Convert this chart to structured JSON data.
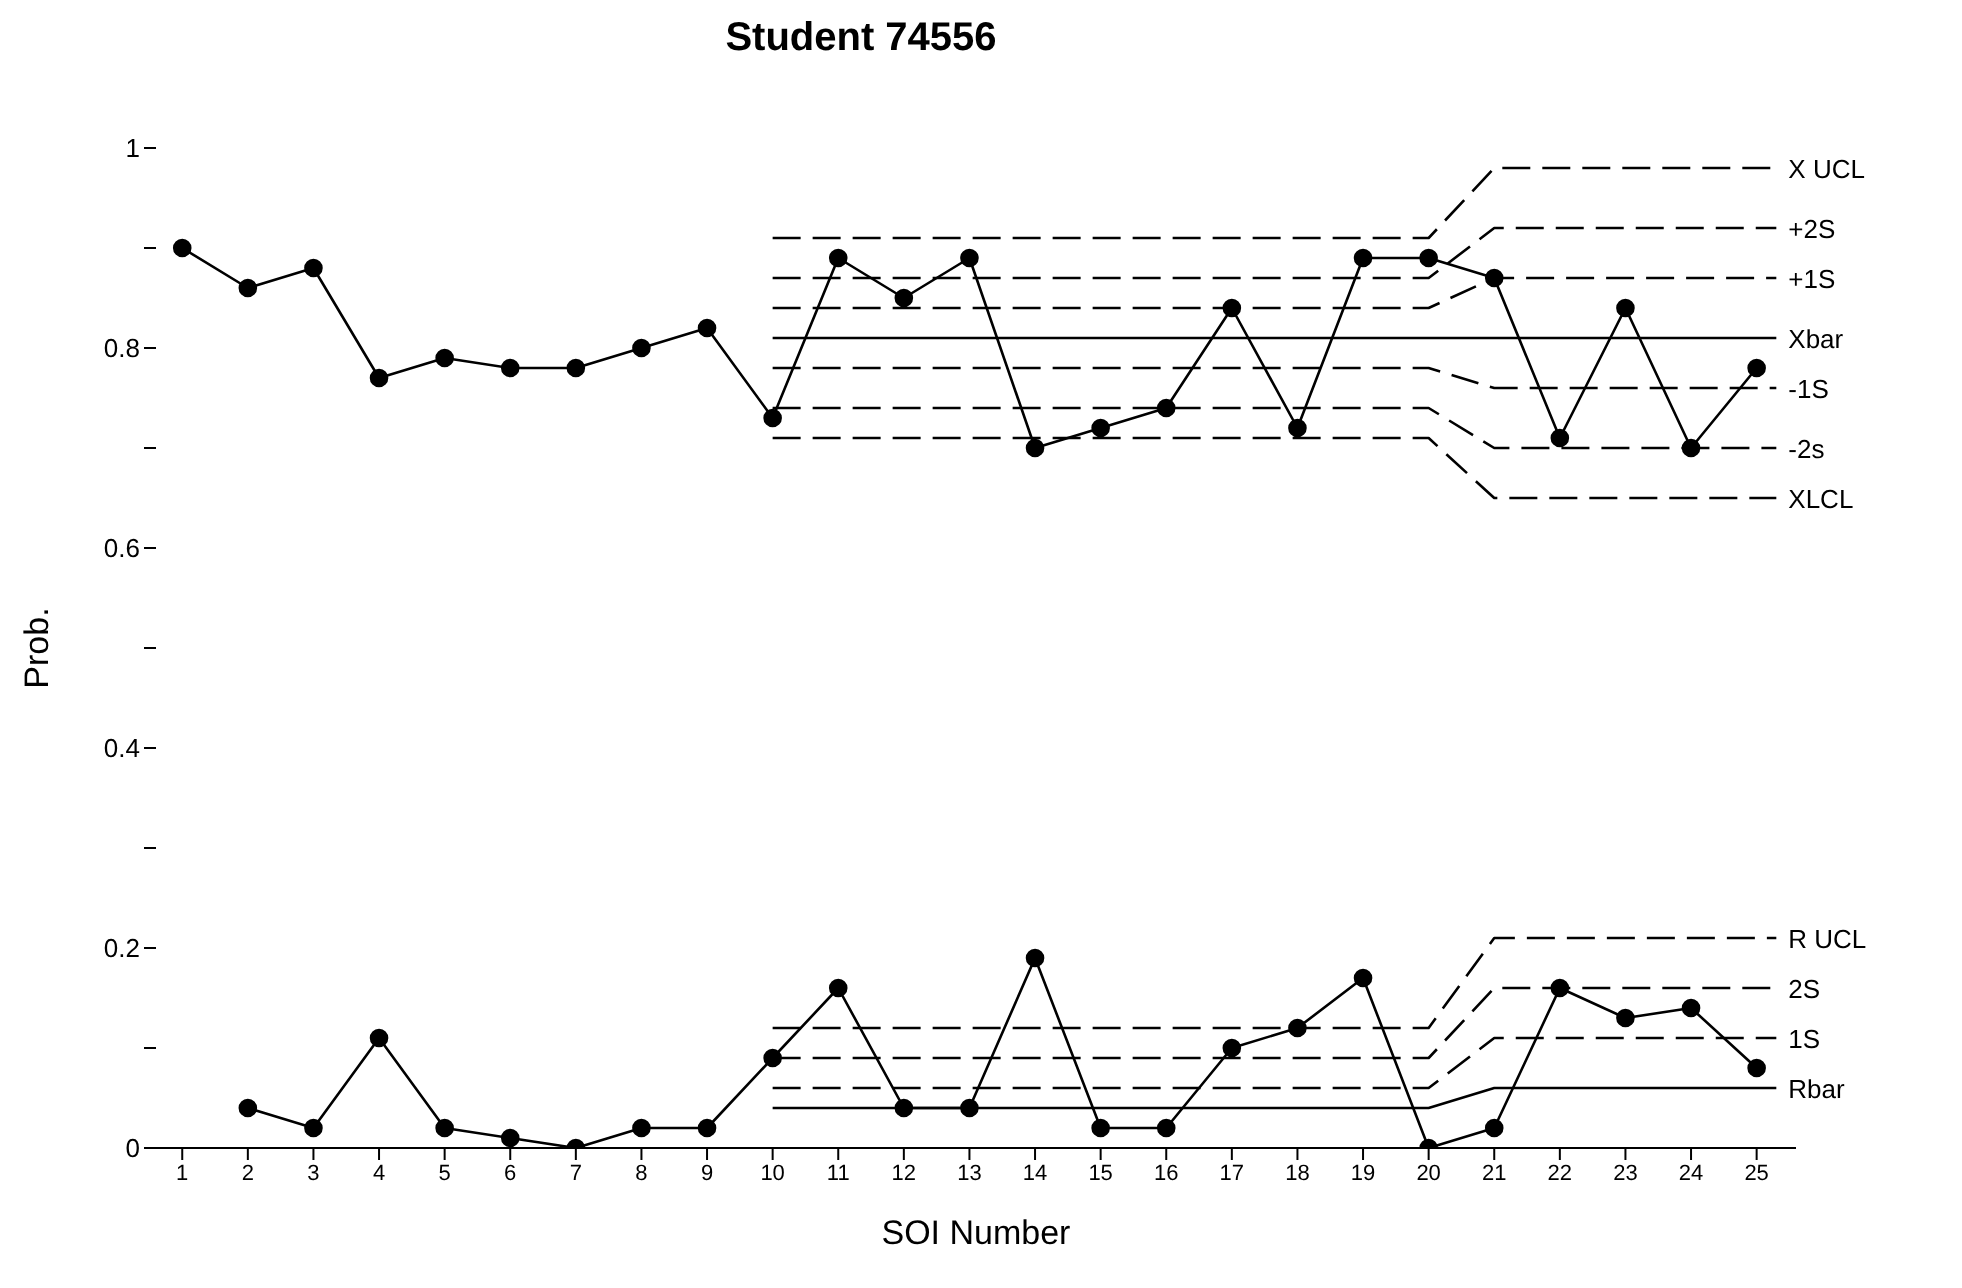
{
  "chart_data": {
    "type": "line",
    "title": "Student 74556",
    "xlabel": "SOI Number",
    "ylabel": "Prob.",
    "xlim": [
      0.6,
      25.6
    ],
    "xticks": [
      1,
      2,
      3,
      4,
      5,
      6,
      7,
      8,
      9,
      10,
      11,
      12,
      13,
      14,
      15,
      16,
      17,
      18,
      19,
      20,
      21,
      22,
      23,
      24,
      25
    ],
    "ylim": [
      0,
      1
    ],
    "yticks": [
      0,
      {
        "value": 0.1,
        "label": null
      },
      0.2,
      {
        "value": 0.3,
        "label": null
      },
      0.4,
      {
        "value": 0.5,
        "label": null
      },
      0.6,
      {
        "value": 0.7,
        "label": null
      },
      0.8,
      {
        "value": 0.9,
        "label": null
      },
      1
    ],
    "series": [
      {
        "color": "#000000",
        "marker": "circle",
        "line_style": "solid",
        "x": [
          1,
          2,
          3,
          4,
          5,
          6,
          7,
          8,
          9,
          10,
          11,
          12,
          13,
          14,
          15,
          16,
          17,
          18,
          19,
          20,
          21,
          22,
          23,
          24,
          25
        ],
        "values": [
          0.9,
          0.86,
          0.88,
          0.77,
          0.79,
          0.78,
          0.78,
          0.8,
          0.82,
          0.73,
          0.89,
          0.85,
          0.89,
          0.7,
          0.72,
          0.74,
          0.84,
          0.72,
          0.89,
          0.89,
          0.87,
          0.71,
          0.84,
          0.7,
          0.78
        ]
      },
      {
        "color": "#000000",
        "marker": "circle",
        "line_style": "solid",
        "x": [
          2,
          3,
          4,
          5,
          6,
          7,
          8,
          9,
          10,
          11,
          12,
          13,
          14,
          15,
          16,
          17,
          18,
          19,
          20,
          21,
          22,
          23,
          24,
          25
        ],
        "values": [
          0.04,
          0.02,
          0.11,
          0.02,
          0.01,
          0.0,
          0.02,
          0.02,
          0.09,
          0.16,
          0.04,
          0.04,
          0.19,
          0.02,
          0.02,
          0.1,
          0.12,
          0.17,
          0.0,
          0.02,
          0.16,
          0.13,
          0.14,
          0.08
        ]
      },
      {
        "name": "X UCL",
        "color": "#000000",
        "marker": "none",
        "line_style": "dashed",
        "x": [
          10,
          20,
          21,
          25.3
        ],
        "values": [
          0.91,
          0.91,
          0.98,
          0.98
        ]
      },
      {
        "name": "+2S",
        "color": "#000000",
        "marker": "none",
        "line_style": "dashed",
        "x": [
          10,
          20,
          21,
          25.3
        ],
        "values": [
          0.87,
          0.87,
          0.92,
          0.92
        ]
      },
      {
        "name": "+1S",
        "color": "#000000",
        "marker": "none",
        "line_style": "dashed",
        "x": [
          10,
          20,
          21,
          25.3
        ],
        "values": [
          0.84,
          0.84,
          0.87,
          0.87
        ]
      },
      {
        "name": "Xbar",
        "color": "#000000",
        "marker": "none",
        "line_style": "solid",
        "x": [
          10,
          20,
          21,
          25.3
        ],
        "values": [
          0.81,
          0.81,
          0.81,
          0.81
        ]
      },
      {
        "name": "-1S",
        "color": "#000000",
        "marker": "none",
        "line_style": "dashed",
        "x": [
          10,
          20,
          21,
          25.3
        ],
        "values": [
          0.78,
          0.78,
          0.76,
          0.76
        ]
      },
      {
        "name": "-2s",
        "color": "#000000",
        "marker": "none",
        "line_style": "dashed",
        "x": [
          10,
          20,
          21,
          25.3
        ],
        "values": [
          0.74,
          0.74,
          0.7,
          0.7
        ]
      },
      {
        "name": "XLCL",
        "color": "#000000",
        "marker": "none",
        "line_style": "dashed",
        "x": [
          10,
          20,
          21,
          25.3
        ],
        "values": [
          0.71,
          0.71,
          0.65,
          0.65
        ]
      },
      {
        "name": "R UCL",
        "color": "#000000",
        "marker": "none",
        "line_style": "dashed",
        "x": [
          10,
          20,
          21,
          25.3
        ],
        "values": [
          0.12,
          0.12,
          0.21,
          0.21
        ]
      },
      {
        "name": "2S",
        "color": "#000000",
        "marker": "none",
        "line_style": "dashed",
        "x": [
          10,
          20,
          21,
          25.3
        ],
        "values": [
          0.09,
          0.09,
          0.16,
          0.16
        ]
      },
      {
        "name": "1S",
        "color": "#000000",
        "marker": "none",
        "line_style": "dashed",
        "x": [
          10,
          20,
          21,
          25.3
        ],
        "values": [
          0.06,
          0.06,
          0.11,
          0.11
        ]
      },
      {
        "name": "Rbar",
        "color": "#000000",
        "marker": "none",
        "line_style": "solid",
        "x": [
          10,
          20,
          21,
          25.3
        ],
        "values": [
          0.04,
          0.04,
          0.06,
          0.06
        ]
      }
    ]
  }
}
